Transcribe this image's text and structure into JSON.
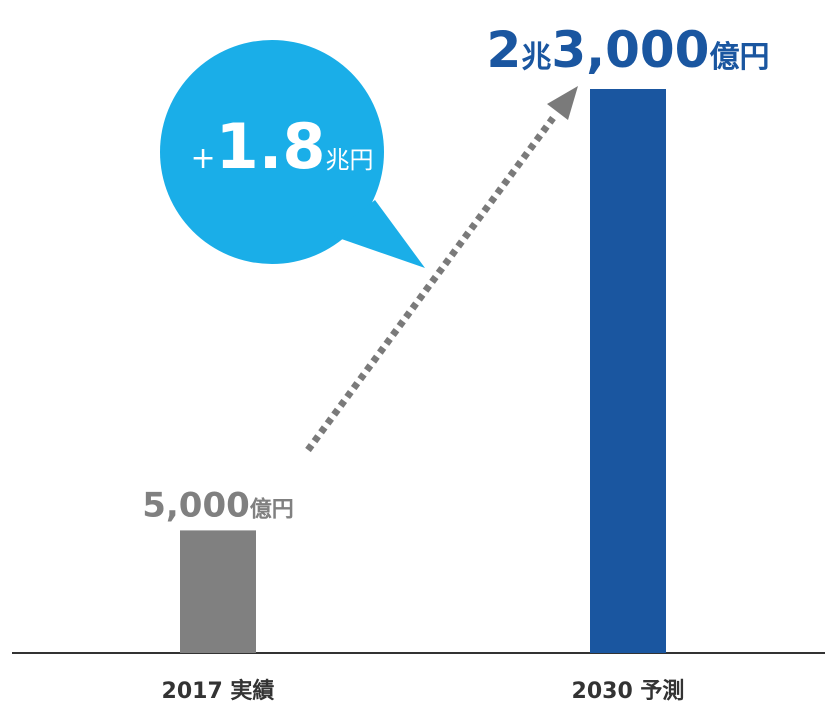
{
  "chart_data": {
    "type": "bar",
    "categories": [
      "2017 実績",
      "2030 予測"
    ],
    "values": [
      5000,
      23000
    ],
    "value_labels": [
      "5,000億円",
      "2兆3,000億円"
    ],
    "colors": [
      "#808080",
      "#1a56a0"
    ],
    "annotation": {
      "sign": "+",
      "number": "1.8",
      "unit": "兆円"
    }
  }
}
